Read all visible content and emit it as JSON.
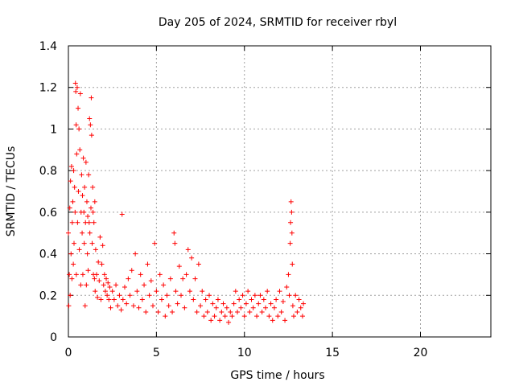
{
  "chart_data": {
    "type": "scatter",
    "title": "Day 205 of 2024, SRMTID for receiver rbyl",
    "xlabel": "GPS time / hours",
    "ylabel": "SRMTID / TECUs",
    "xlim": [
      0,
      24
    ],
    "ylim": [
      0,
      1.4
    ],
    "x_ticks": [
      0,
      5,
      10,
      15,
      20
    ],
    "x_tick_labels": [
      "0",
      "5",
      "10",
      "15",
      "20"
    ],
    "y_ticks": [
      0,
      0.2,
      0.4,
      0.6,
      0.8,
      1,
      1.2,
      1.4
    ],
    "y_tick_labels": [
      "0",
      "0.2",
      "0.4",
      "0.6",
      "0.8",
      "1",
      "1.2",
      "1.4"
    ],
    "grid": true,
    "marker": "+",
    "series": [
      {
        "name": "SRMTID",
        "color": "#ff0000",
        "points": [
          [
            0.0,
            0.5
          ],
          [
            0.02,
            0.15
          ],
          [
            0.05,
            0.3
          ],
          [
            0.08,
            0.62
          ],
          [
            0.1,
            0.2
          ],
          [
            0.12,
            0.75
          ],
          [
            0.15,
            0.4
          ],
          [
            0.18,
            0.82
          ],
          [
            0.2,
            0.28
          ],
          [
            0.22,
            0.55
          ],
          [
            0.25,
            0.65
          ],
          [
            0.28,
            0.35
          ],
          [
            0.3,
            0.8
          ],
          [
            0.32,
            0.45
          ],
          [
            0.35,
            0.72
          ],
          [
            0.38,
            0.6
          ],
          [
            0.4,
            1.22
          ],
          [
            0.42,
            1.18
          ],
          [
            0.44,
            1.02
          ],
          [
            0.45,
            0.3
          ],
          [
            0.47,
            0.88
          ],
          [
            0.5,
            1.2
          ],
          [
            0.52,
            0.55
          ],
          [
            0.55,
            1.1
          ],
          [
            0.57,
            0.7
          ],
          [
            0.6,
            1.0
          ],
          [
            0.62,
            0.42
          ],
          [
            0.65,
            0.9
          ],
          [
            0.68,
            1.17
          ],
          [
            0.7,
            0.25
          ],
          [
            0.72,
            0.6
          ],
          [
            0.75,
            0.78
          ],
          [
            0.78,
            0.5
          ],
          [
            0.8,
            0.68
          ],
          [
            0.82,
            0.3
          ],
          [
            0.85,
            0.86
          ],
          [
            0.88,
            0.6
          ],
          [
            0.9,
            0.45
          ],
          [
            0.92,
            0.72
          ],
          [
            0.95,
            0.15
          ],
          [
            0.97,
            0.55
          ],
          [
            1.0,
            0.84
          ],
          [
            1.02,
            0.25
          ],
          [
            1.05,
            0.65
          ],
          [
            1.08,
            0.4
          ],
          [
            1.1,
            0.58
          ],
          [
            1.12,
            0.32
          ],
          [
            1.15,
            0.78
          ],
          [
            1.18,
            0.55
          ],
          [
            1.2,
            1.05
          ],
          [
            1.22,
            0.5
          ],
          [
            1.25,
            1.02
          ],
          [
            1.28,
            0.62
          ],
          [
            1.3,
            1.15
          ],
          [
            1.32,
            0.97
          ],
          [
            1.35,
            0.45
          ],
          [
            1.38,
            0.72
          ],
          [
            1.4,
            0.6
          ],
          [
            1.42,
            0.3
          ],
          [
            1.45,
            0.55
          ],
          [
            1.48,
            0.28
          ],
          [
            1.5,
            0.65
          ],
          [
            1.52,
            0.22
          ],
          [
            1.55,
            0.42
          ],
          [
            1.6,
            0.3
          ],
          [
            1.65,
            0.19
          ],
          [
            1.7,
            0.36
          ],
          [
            1.75,
            0.27
          ],
          [
            1.8,
            0.48
          ],
          [
            1.85,
            0.18
          ],
          [
            1.9,
            0.35
          ],
          [
            1.95,
            0.44
          ],
          [
            2.0,
            0.25
          ],
          [
            2.05,
            0.3
          ],
          [
            2.1,
            0.22
          ],
          [
            2.15,
            0.28
          ],
          [
            2.2,
            0.2
          ],
          [
            2.25,
            0.26
          ],
          [
            2.3,
            0.18
          ],
          [
            2.35,
            0.24
          ],
          [
            2.4,
            0.14
          ],
          [
            2.5,
            0.22
          ],
          [
            2.6,
            0.18
          ],
          [
            2.7,
            0.25
          ],
          [
            2.8,
            0.15
          ],
          [
            2.9,
            0.2
          ],
          [
            3.0,
            0.13
          ],
          [
            3.05,
            0.59
          ],
          [
            3.1,
            0.18
          ],
          [
            3.2,
            0.24
          ],
          [
            3.3,
            0.16
          ],
          [
            3.4,
            0.28
          ],
          [
            3.5,
            0.2
          ],
          [
            3.6,
            0.32
          ],
          [
            3.7,
            0.15
          ],
          [
            3.8,
            0.4
          ],
          [
            3.9,
            0.22
          ],
          [
            4.0,
            0.14
          ],
          [
            4.1,
            0.3
          ],
          [
            4.2,
            0.18
          ],
          [
            4.3,
            0.25
          ],
          [
            4.4,
            0.12
          ],
          [
            4.5,
            0.35
          ],
          [
            4.6,
            0.2
          ],
          [
            4.7,
            0.27
          ],
          [
            4.8,
            0.15
          ],
          [
            4.9,
            0.45
          ],
          [
            5.0,
            0.22
          ],
          [
            5.1,
            0.12
          ],
          [
            5.2,
            0.3
          ],
          [
            5.3,
            0.18
          ],
          [
            5.4,
            0.25
          ],
          [
            5.5,
            0.1
          ],
          [
            5.6,
            0.2
          ],
          [
            5.7,
            0.15
          ],
          [
            5.8,
            0.28
          ],
          [
            5.9,
            0.12
          ],
          [
            6.0,
            0.5
          ],
          [
            6.05,
            0.45
          ],
          [
            6.1,
            0.22
          ],
          [
            6.2,
            0.16
          ],
          [
            6.3,
            0.34
          ],
          [
            6.4,
            0.2
          ],
          [
            6.5,
            0.28
          ],
          [
            6.6,
            0.14
          ],
          [
            6.7,
            0.3
          ],
          [
            6.8,
            0.42
          ],
          [
            6.9,
            0.22
          ],
          [
            7.0,
            0.38
          ],
          [
            7.1,
            0.18
          ],
          [
            7.2,
            0.28
          ],
          [
            7.3,
            0.12
          ],
          [
            7.4,
            0.35
          ],
          [
            7.5,
            0.15
          ],
          [
            7.6,
            0.22
          ],
          [
            7.7,
            0.1
          ],
          [
            7.8,
            0.18
          ],
          [
            7.9,
            0.12
          ],
          [
            8.0,
            0.2
          ],
          [
            8.1,
            0.08
          ],
          [
            8.2,
            0.16
          ],
          [
            8.3,
            0.1
          ],
          [
            8.4,
            0.14
          ],
          [
            8.5,
            0.18
          ],
          [
            8.6,
            0.08
          ],
          [
            8.7,
            0.12
          ],
          [
            8.8,
            0.16
          ],
          [
            8.9,
            0.1
          ],
          [
            9.0,
            0.14
          ],
          [
            9.1,
            0.07
          ],
          [
            9.2,
            0.12
          ],
          [
            9.3,
            0.1
          ],
          [
            9.4,
            0.16
          ],
          [
            9.5,
            0.22
          ],
          [
            9.6,
            0.12
          ],
          [
            9.7,
            0.18
          ],
          [
            9.8,
            0.14
          ],
          [
            9.9,
            0.2
          ],
          [
            10.0,
            0.1
          ],
          [
            10.1,
            0.16
          ],
          [
            10.2,
            0.22
          ],
          [
            10.3,
            0.12
          ],
          [
            10.4,
            0.18
          ],
          [
            10.5,
            0.14
          ],
          [
            10.6,
            0.2
          ],
          [
            10.7,
            0.1
          ],
          [
            10.8,
            0.16
          ],
          [
            10.9,
            0.2
          ],
          [
            11.0,
            0.12
          ],
          [
            11.1,
            0.18
          ],
          [
            11.2,
            0.14
          ],
          [
            11.3,
            0.22
          ],
          [
            11.4,
            0.1
          ],
          [
            11.5,
            0.16
          ],
          [
            11.6,
            0.08
          ],
          [
            11.7,
            0.14
          ],
          [
            11.8,
            0.18
          ],
          [
            11.9,
            0.1
          ],
          [
            12.0,
            0.22
          ],
          [
            12.1,
            0.12
          ],
          [
            12.2,
            0.17
          ],
          [
            12.3,
            0.08
          ],
          [
            12.4,
            0.24
          ],
          [
            12.5,
            0.3
          ],
          [
            12.55,
            0.2
          ],
          [
            12.6,
            0.45
          ],
          [
            12.62,
            0.55
          ],
          [
            12.65,
            0.65
          ],
          [
            12.68,
            0.6
          ],
          [
            12.7,
            0.5
          ],
          [
            12.72,
            0.35
          ],
          [
            12.75,
            0.15
          ],
          [
            12.8,
            0.1
          ],
          [
            12.9,
            0.2
          ],
          [
            13.0,
            0.12
          ],
          [
            13.1,
            0.18
          ],
          [
            13.2,
            0.14
          ],
          [
            13.3,
            0.1
          ],
          [
            13.35,
            0.16
          ]
        ]
      }
    ]
  }
}
